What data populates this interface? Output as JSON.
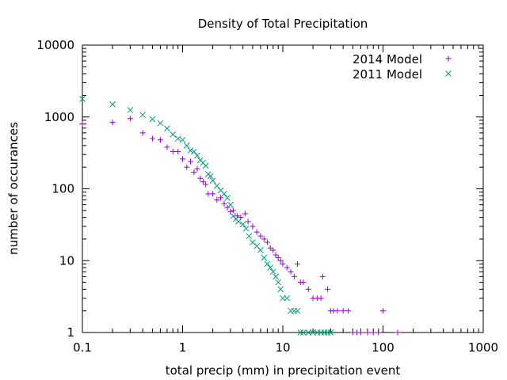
{
  "chart_data": {
    "type": "scatter",
    "title": "Density of Total Precipitation",
    "xlabel": "total precip (mm) in precipitation event",
    "ylabel": "number of occurances",
    "xscale": "log",
    "yscale": "log",
    "xlim": [
      0.1,
      1000
    ],
    "ylim": [
      1,
      10000
    ],
    "x_ticks": [
      "0.1",
      "1",
      "10",
      "100",
      "1000"
    ],
    "y_ticks": [
      "1",
      "10",
      "100",
      "1000",
      "10000"
    ],
    "grid": false,
    "legend_position": "top-right",
    "series": [
      {
        "name": "2014 Model",
        "marker": "plus",
        "color": "#9400d3",
        "points": [
          [
            0.1,
            800
          ],
          [
            0.2,
            840
          ],
          [
            0.3,
            950
          ],
          [
            0.4,
            600
          ],
          [
            0.5,
            500
          ],
          [
            0.6,
            480
          ],
          [
            0.7,
            380
          ],
          [
            0.8,
            330
          ],
          [
            0.9,
            330
          ],
          [
            1.0,
            260
          ],
          [
            1.1,
            200
          ],
          [
            1.2,
            240
          ],
          [
            1.3,
            170
          ],
          [
            1.4,
            190
          ],
          [
            1.5,
            140
          ],
          [
            1.6,
            125
          ],
          [
            1.7,
            115
          ],
          [
            1.8,
            85
          ],
          [
            2.0,
            85
          ],
          [
            2.2,
            70
          ],
          [
            2.4,
            75
          ],
          [
            2.6,
            62
          ],
          [
            2.8,
            55
          ],
          [
            3.0,
            48
          ],
          [
            3.2,
            50
          ],
          [
            3.5,
            42
          ],
          [
            3.8,
            40
          ],
          [
            4.2,
            45
          ],
          [
            4.5,
            35
          ],
          [
            5.0,
            30
          ],
          [
            5.5,
            25
          ],
          [
            6.0,
            22
          ],
          [
            6.5,
            20
          ],
          [
            7.0,
            18
          ],
          [
            7.5,
            15
          ],
          [
            8.0,
            14
          ],
          [
            8.5,
            12
          ],
          [
            9.0,
            11
          ],
          [
            9.5,
            10
          ],
          [
            10,
            9
          ],
          [
            11,
            8
          ],
          [
            12,
            7
          ],
          [
            13,
            6
          ],
          [
            14,
            9
          ],
          [
            15,
            5
          ],
          [
            16,
            5
          ],
          [
            18,
            4
          ],
          [
            20,
            3
          ],
          [
            22,
            3
          ],
          [
            24,
            3
          ],
          [
            25,
            6
          ],
          [
            28,
            4
          ],
          [
            30,
            2
          ],
          [
            32,
            2
          ],
          [
            35,
            2
          ],
          [
            40,
            2
          ],
          [
            45,
            2
          ],
          [
            50,
            1
          ],
          [
            55,
            1
          ],
          [
            60,
            1
          ],
          [
            70,
            1
          ],
          [
            80,
            1
          ],
          [
            90,
            1
          ],
          [
            100,
            2
          ],
          [
            140,
            1
          ]
        ]
      },
      {
        "name": "2011 Model",
        "marker": "cross",
        "color": "#009e73",
        "points": [
          [
            0.1,
            1780
          ],
          [
            0.2,
            1500
          ],
          [
            0.3,
            1250
          ],
          [
            0.4,
            1070
          ],
          [
            0.5,
            930
          ],
          [
            0.6,
            820
          ],
          [
            0.7,
            690
          ],
          [
            0.8,
            570
          ],
          [
            0.9,
            500
          ],
          [
            1.0,
            480
          ],
          [
            1.1,
            400
          ],
          [
            1.2,
            340
          ],
          [
            1.3,
            330
          ],
          [
            1.4,
            290
          ],
          [
            1.5,
            250
          ],
          [
            1.6,
            230
          ],
          [
            1.7,
            210
          ],
          [
            1.8,
            160
          ],
          [
            1.9,
            150
          ],
          [
            2.0,
            130
          ],
          [
            2.2,
            110
          ],
          [
            2.4,
            95
          ],
          [
            2.6,
            85
          ],
          [
            2.8,
            75
          ],
          [
            3.0,
            60
          ],
          [
            3.2,
            42
          ],
          [
            3.4,
            38
          ],
          [
            3.6,
            35
          ],
          [
            4.0,
            32
          ],
          [
            4.3,
            28
          ],
          [
            4.6,
            22
          ],
          [
            5.0,
            18
          ],
          [
            5.5,
            16
          ],
          [
            6.0,
            14
          ],
          [
            6.5,
            11
          ],
          [
            7.0,
            9
          ],
          [
            7.5,
            8
          ],
          [
            8.0,
            7
          ],
          [
            8.5,
            6
          ],
          [
            9.0,
            5
          ],
          [
            9.5,
            4
          ],
          [
            10,
            3
          ],
          [
            11,
            3
          ],
          [
            12,
            2
          ],
          [
            13,
            2
          ],
          [
            14,
            2
          ],
          [
            15,
            1
          ],
          [
            16,
            1
          ],
          [
            18,
            1
          ],
          [
            20,
            1
          ],
          [
            22,
            1
          ],
          [
            24,
            1
          ],
          [
            26,
            1
          ],
          [
            28,
            1
          ],
          [
            30,
            1
          ]
        ]
      }
    ]
  }
}
